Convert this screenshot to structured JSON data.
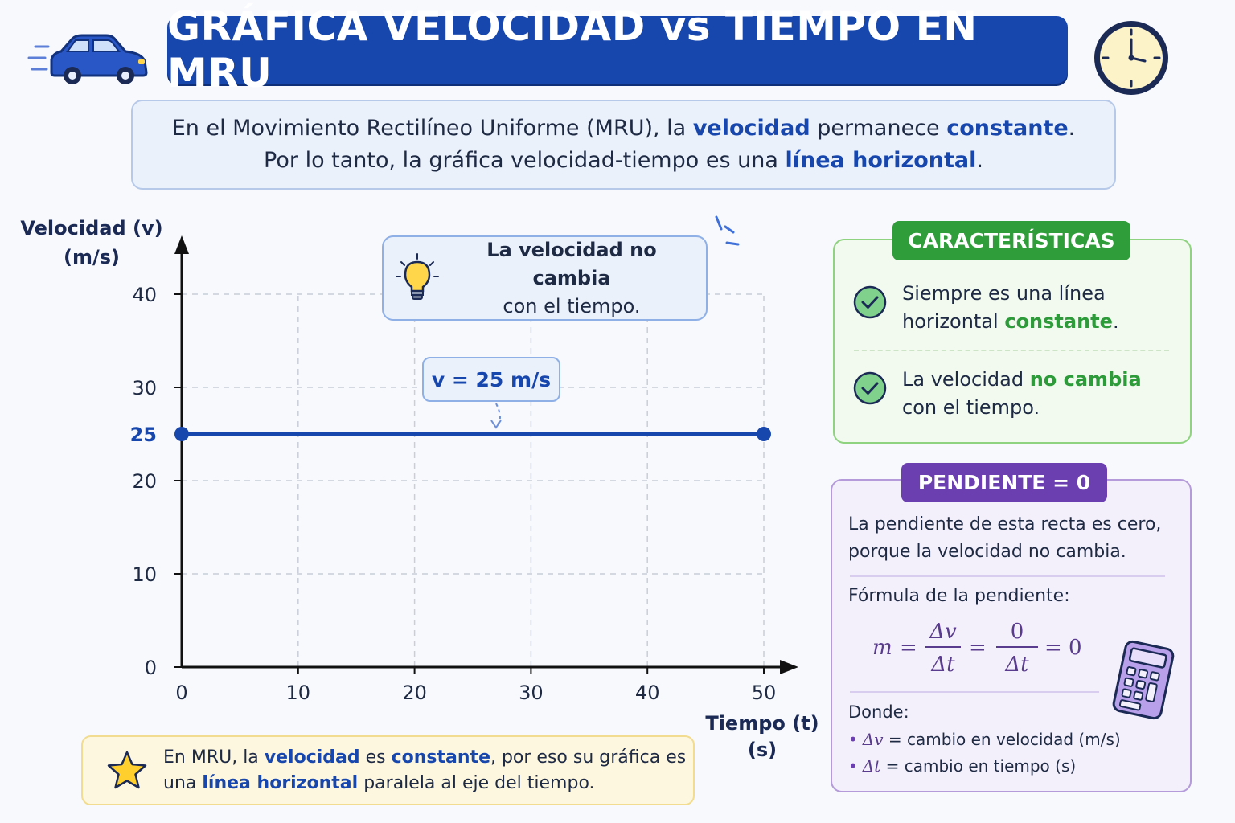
{
  "title": "GRÁFICA VELOCIDAD vs TIEMPO EN MRU",
  "intro": {
    "line1_pre": "En el Movimiento Rectilíneo Uniforme (MRU), la ",
    "line1_hl1": "velocidad",
    "line1_mid": " permanece ",
    "line1_hl2": "constante",
    "line1_end": ".",
    "line2_pre": "Por lo tanto, la gráfica velocidad-tiempo es una ",
    "line2_hl": "línea horizontal",
    "line2_end": "."
  },
  "chart_data": {
    "type": "line",
    "ylabel_line1": "Velocidad (v)",
    "ylabel_line2": "(m/s)",
    "xlabel_line1": "Tiempo (t)",
    "xlabel_line2": "(s)",
    "xlim": [
      0,
      50
    ],
    "ylim": [
      0,
      40
    ],
    "x_ticks": [
      0,
      10,
      20,
      30,
      40,
      50
    ],
    "y_ticks": [
      0,
      10,
      20,
      30,
      40
    ],
    "highlight_y_tick": 25,
    "grid": true,
    "series": [
      {
        "x": [
          0,
          50
        ],
        "y": [
          25,
          25
        ],
        "color": "#1746ad"
      }
    ],
    "annotation": "v = 25 m/s",
    "annotation_x": 27
  },
  "tip": {
    "line1": "La velocidad no cambia",
    "line2": "con el tiempo."
  },
  "note": {
    "p1": "En MRU, la ",
    "h1": "velocidad",
    "p2": " es ",
    "h2": "constante",
    "p3": ", por eso su gráfica es",
    "p4": "una ",
    "h3": "línea horizontal",
    "p5": " paralela al eje del tiempo."
  },
  "characteristics": {
    "header": "CARACTERÍSTICAS",
    "item1_line1": "Siempre es una línea",
    "item1_line2_pre": "horizontal ",
    "item1_line2_hl": "constante",
    "item1_line2_end": ".",
    "item2_line1_pre": "La velocidad ",
    "item2_line1_hl": "no cambia",
    "item2_line2": "con el tiempo."
  },
  "slope": {
    "header": "PENDIENTE = 0",
    "desc_line1": "La pendiente de esta recta es cero,",
    "desc_line2": "porque la velocidad no cambia.",
    "formula_label": "Fórmula de la pendiente:",
    "formula_m": "m",
    "formula_eq": "=",
    "formula_num1": "Δv",
    "formula_den1": "Δt",
    "formula_num2": "0",
    "formula_den2": "Δt",
    "formula_result": "= 0",
    "donde": "Donde:",
    "b1_sym": "Δv",
    "b1_text": " = cambio en velocidad (m/s)",
    "b2_sym": "Δt",
    "b2_text": " = cambio en tiempo (s)"
  },
  "colors": {
    "primary_blue": "#1746ad",
    "green": "#2f9e3a",
    "purple": "#6b3fb0",
    "yellow_bg": "#fdf7df"
  },
  "icons": [
    "car-icon",
    "clock-icon",
    "lightbulb-icon",
    "star-icon",
    "check-icon",
    "calculator-icon"
  ]
}
